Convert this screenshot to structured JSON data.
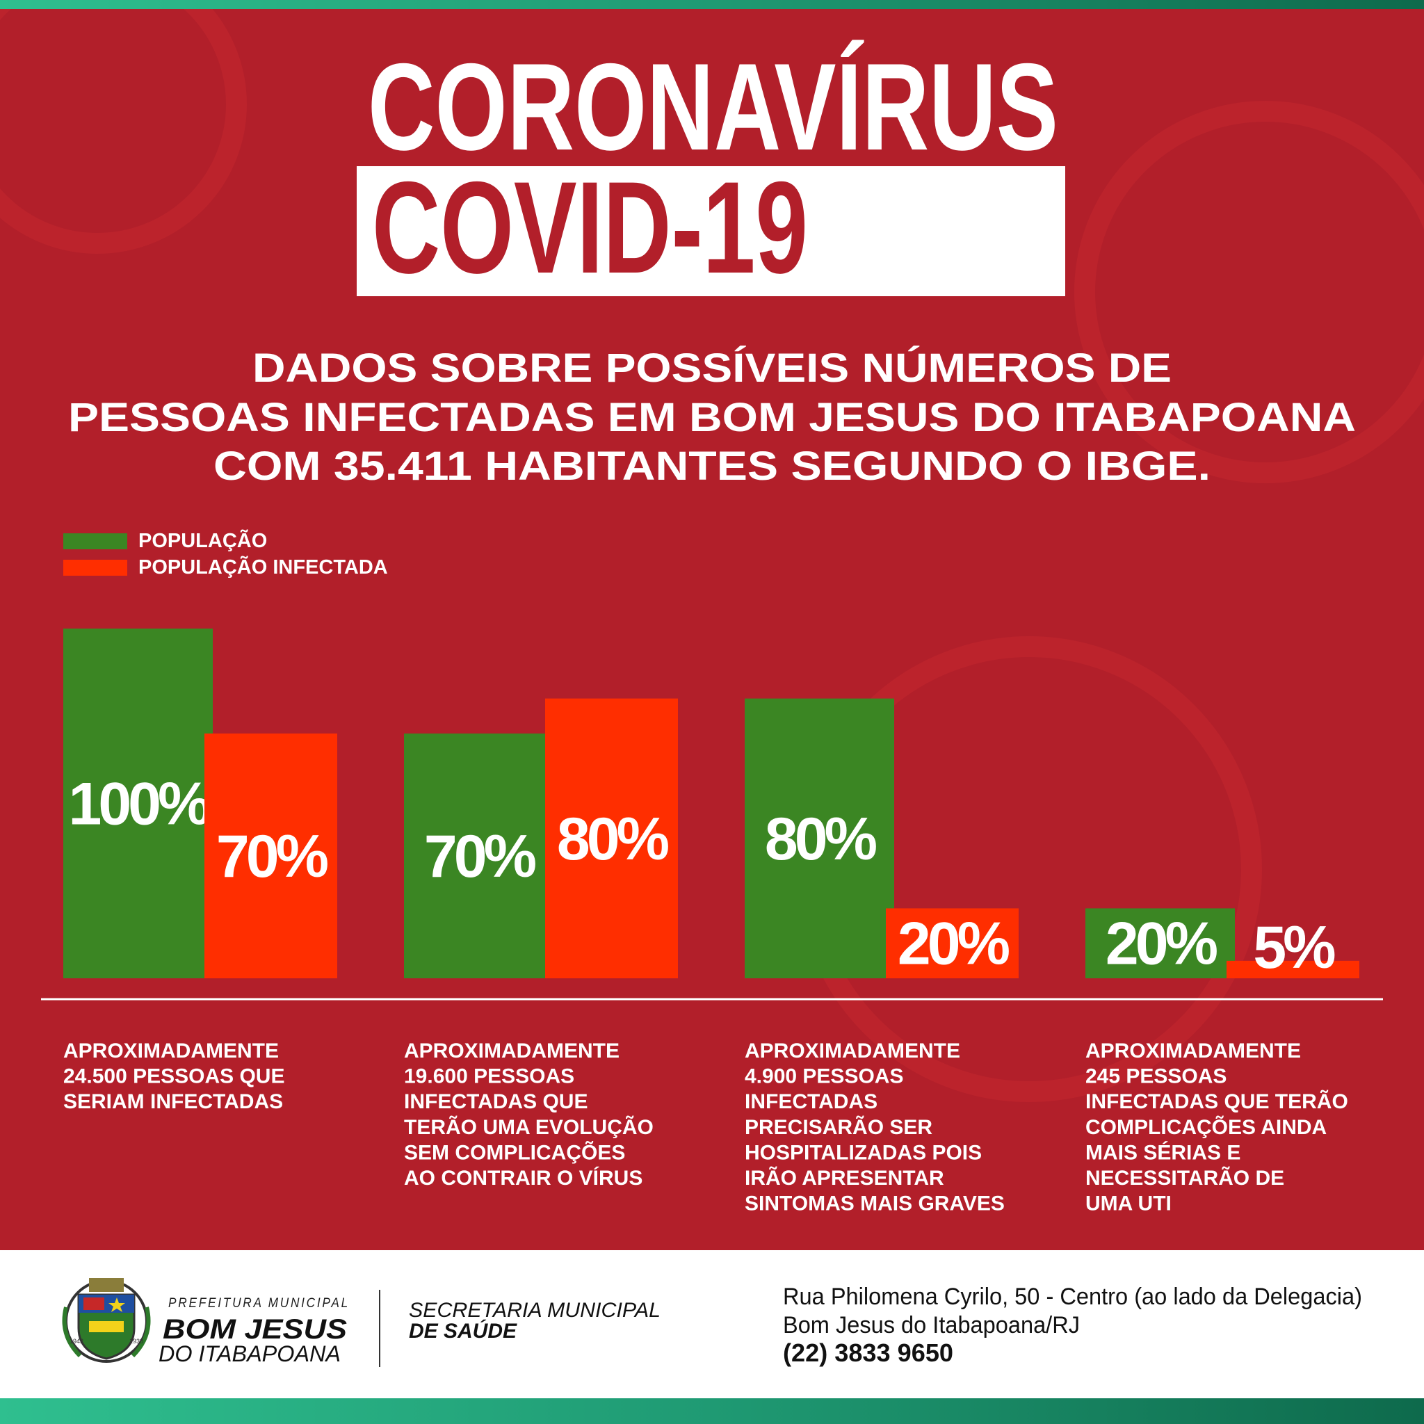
{
  "header": {
    "title": "CORONAVÍRUS",
    "subtitle": "COVID-19",
    "description": [
      "DADOS SOBRE POSSÍVEIS NÚMEROS DE",
      "PESSOAS INFECTADAS EM BOM JESUS DO ITABAPOANA",
      "COM 35.411 HABITANTES SEGUNDO O IBGE."
    ]
  },
  "chart_data": {
    "type": "bar",
    "categories": [
      [
        "APROXIMADAMENTE",
        "24.500 PESSOAS QUE",
        "SERIAM INFECTADAS"
      ],
      [
        "APROXIMADAMENTE",
        "19.600 PESSOAS",
        "INFECTADAS QUE",
        "TERÃO UMA EVOLUÇÃO",
        "SEM COMPLICAÇÕES",
        "AO CONTRAIR O VÍRUS"
      ],
      [
        "APROXIMADAMENTE",
        "4.900 PESSOAS",
        "INFECTADAS",
        "PRECISARÃO SER",
        "HOSPITALIZADAS POIS",
        "IRÃO APRESENTAR",
        "SINTOMAS MAIS GRAVES"
      ],
      [
        "APROXIMADAMENTE",
        "245 PESSOAS",
        "INFECTADAS QUE TERÃO",
        "COMPLICAÇÕES AINDA",
        "MAIS SÉRIAS E",
        "NECESSITARÃO DE",
        "UMA UTI"
      ]
    ],
    "series": [
      {
        "name": "POPULAÇÃO",
        "color": "#3b8623",
        "values": [
          100,
          70,
          80,
          20
        ],
        "value_labels": [
          "100%",
          "70%",
          "80%",
          "20%"
        ]
      },
      {
        "name": "POPULAÇÃO INFECTADA",
        "color": "#ff2e00",
        "values": [
          70,
          80,
          20,
          5
        ],
        "value_labels": [
          "70%",
          "80%",
          "20%",
          "5%"
        ]
      }
    ],
    "ylim": [
      0,
      100
    ],
    "legend": "top-left"
  },
  "footer": {
    "emblem": [
      "1942",
      "1938"
    ],
    "org": [
      "PREFEITURA MUNICIPAL",
      "BOM JESUS",
      "DO ITABAPOANA"
    ],
    "department": [
      "SECRETARIA MUNICIPAL",
      "DE SAÚDE"
    ],
    "address": [
      "Rua Philomena Cyrilo, 50 - Centro (ao lado da Delegacia)",
      "Bom Jesus do Itabapoana/RJ",
      "(22) 3833 9650"
    ]
  }
}
